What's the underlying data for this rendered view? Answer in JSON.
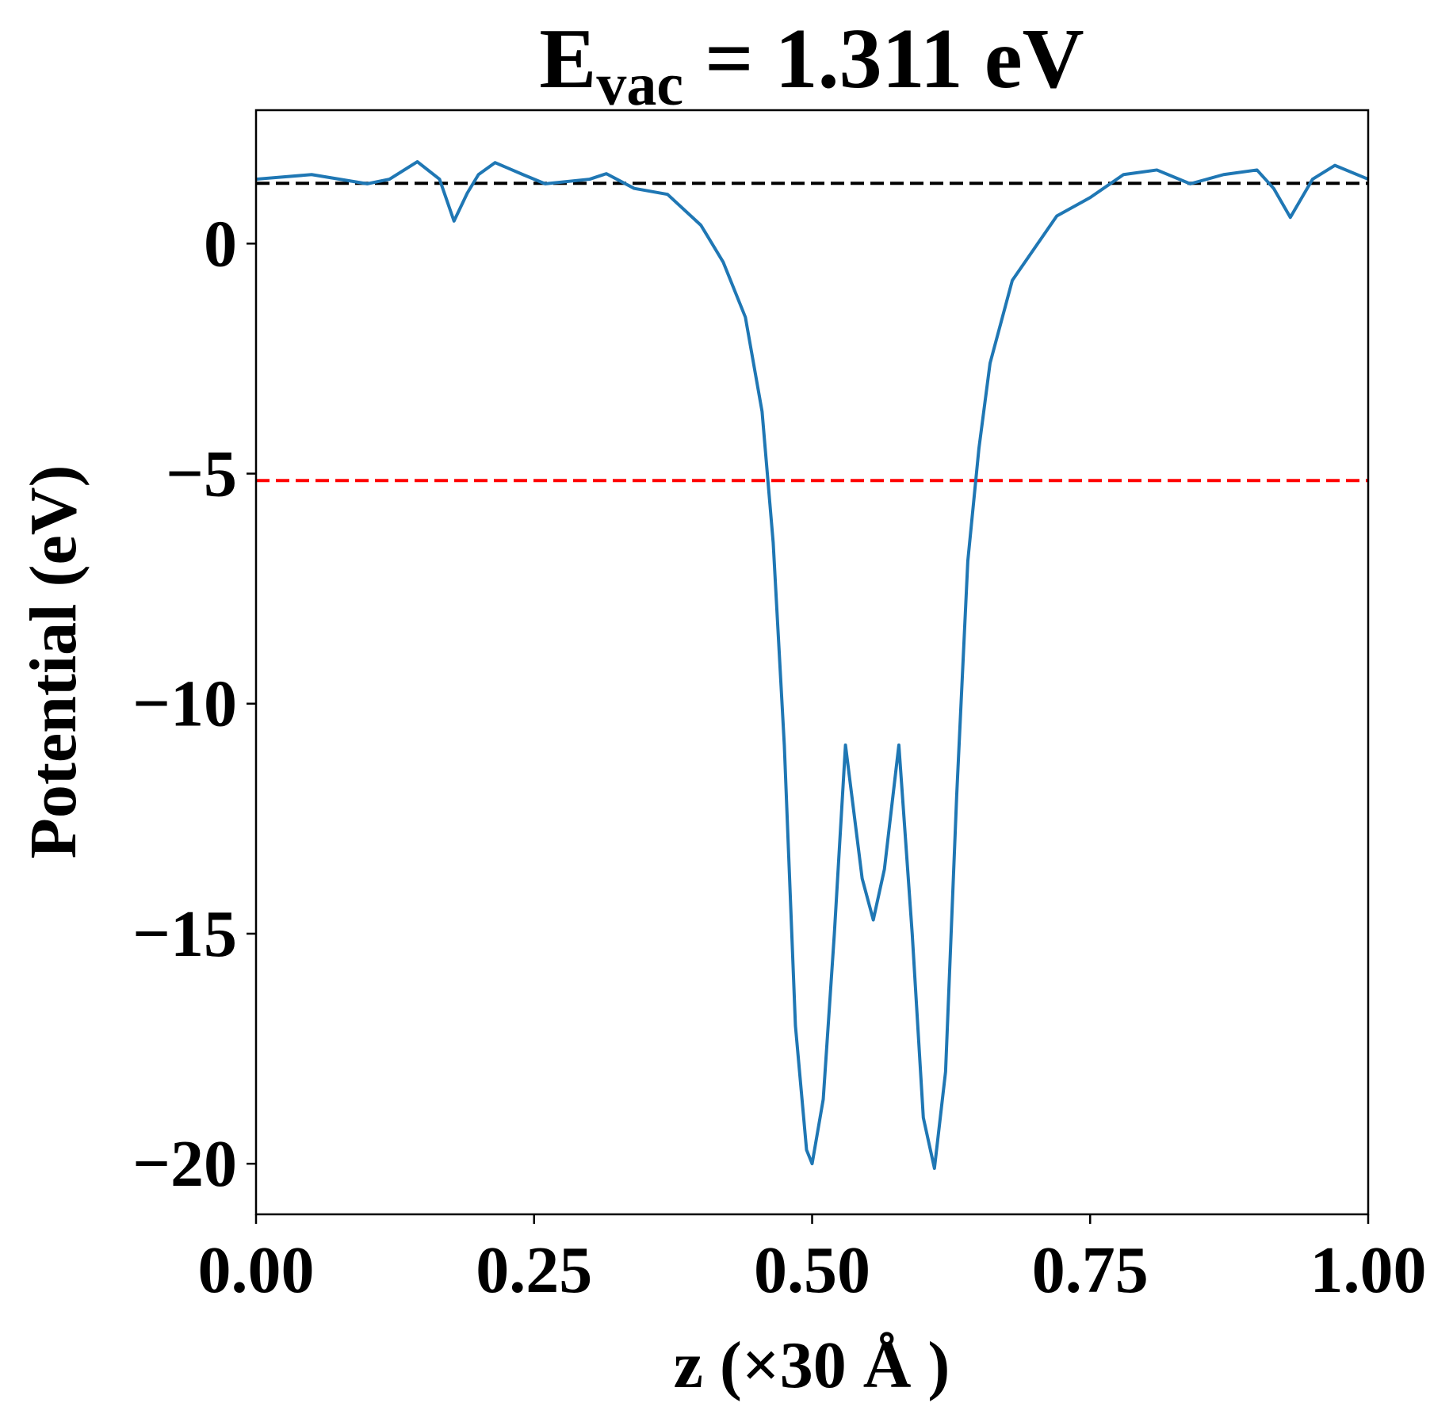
{
  "chart_data": {
    "type": "line",
    "title": {
      "main": "E",
      "sub": "vac",
      "rest": " = 1.311 eV"
    },
    "xlabel": "z (×30 Å )",
    "ylabel": "Potential (eV)",
    "xlim": [
      0,
      1
    ],
    "ylim": [
      -21.1,
      2.9
    ],
    "xticks": [
      {
        "value": 0,
        "label": "0.00"
      },
      {
        "value": 0.25,
        "label": "0.25"
      },
      {
        "value": 0.5,
        "label": "0.50"
      },
      {
        "value": 0.75,
        "label": "0.75"
      },
      {
        "value": 1,
        "label": "1.00"
      }
    ],
    "yticks": [
      0,
      {
        "value": -5,
        "label": "−5"
      },
      {
        "value": -10,
        "label": "−10"
      },
      {
        "value": -15,
        "label": "−15"
      },
      {
        "value": -20,
        "label": "−20"
      }
    ],
    "hlines": [
      {
        "value": 1.311,
        "color": "#000000"
      },
      {
        "value": -5.15,
        "color": "#ff0000"
      }
    ],
    "series": [
      {
        "color": "#1f77b4",
        "x": [
          0,
          0.05,
          0.1,
          0.12,
          0.145,
          0.165,
          0.178,
          0.19,
          0.2,
          0.215,
          0.24,
          0.26,
          0.3,
          0.315,
          0.34,
          0.37,
          0.4,
          0.42,
          0.44,
          0.455,
          0.465,
          0.475,
          0.485,
          0.495,
          0.5,
          0.51,
          0.52,
          0.53,
          0.545,
          0.555,
          0.565,
          0.578,
          0.59,
          0.6,
          0.61,
          0.62,
          0.63,
          0.64,
          0.65,
          0.66,
          0.68,
          0.72,
          0.75,
          0.78,
          0.81,
          0.84,
          0.87,
          0.9,
          0.915,
          0.93,
          0.95,
          0.97,
          1.0
        ],
        "values": [
          1.4,
          1.5,
          1.3,
          1.4,
          1.78,
          1.4,
          0.49,
          1.1,
          1.5,
          1.76,
          1.5,
          1.3,
          1.4,
          1.52,
          1.2,
          1.07,
          0.4,
          -0.4,
          -1.6,
          -3.65,
          -6.5,
          -10.9,
          -17,
          -19.7,
          -20.0,
          -18.6,
          -15,
          -10.9,
          -13.8,
          -14.7,
          -13.6,
          -10.9,
          -15,
          -19,
          -20.1,
          -18,
          -12,
          -6.9,
          -4.45,
          -2.6,
          -0.8,
          0.6,
          1.0,
          1.5,
          1.6,
          1.3,
          1.5,
          1.6,
          1.2,
          0.57,
          1.4,
          1.7,
          1.4
        ]
      }
    ]
  }
}
